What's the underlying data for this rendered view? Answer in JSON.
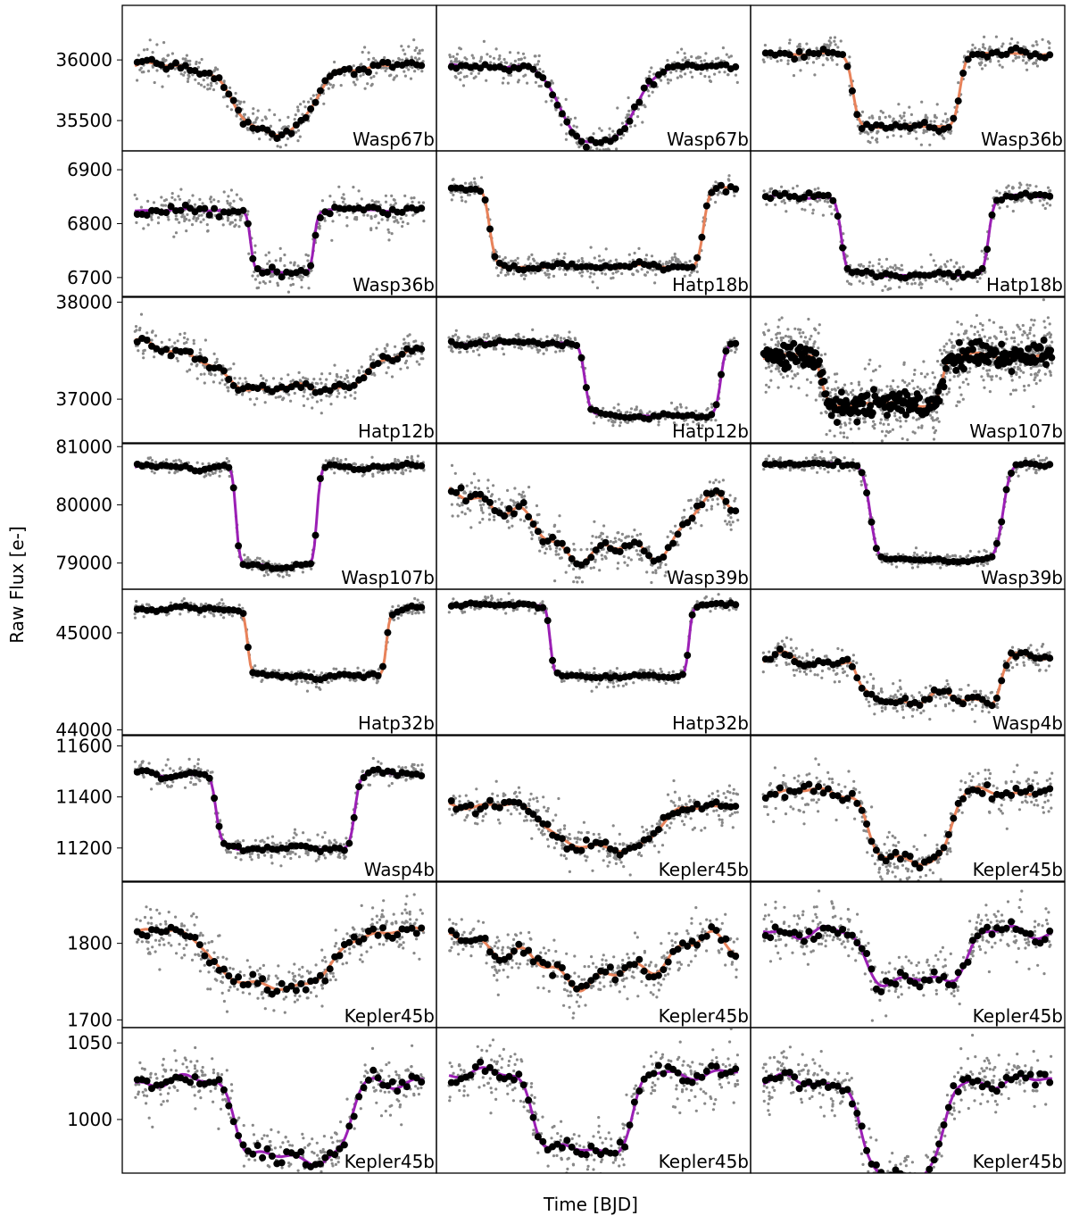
{
  "chart_data": {
    "type": "scatter",
    "xlabel": "Time [BJD]",
    "ylabel": "Raw Flux [e-]",
    "colors": {
      "raw": "#888888",
      "binned": "#000000",
      "orange": "#e8825a",
      "purple": "#9b1fb5"
    },
    "rows": [
      {
        "ylim": [
          35250,
          36450
        ],
        "ticks": [
          36000,
          35500
        ],
        "tick_labels": [
          "36000",
          "35500"
        ]
      },
      {
        "ylim": [
          6665,
          6935
        ],
        "ticks": [
          6900,
          6800,
          6700
        ],
        "tick_labels": [
          "6900",
          "6800",
          "6700"
        ]
      },
      {
        "ylim": [
          36550,
          38050
        ],
        "ticks": [
          38000,
          37000
        ],
        "tick_labels": [
          "38000",
          "37000"
        ]
      },
      {
        "ylim": [
          78550,
          81050
        ],
        "ticks": [
          81000,
          80000,
          79000
        ],
        "tick_labels": [
          "81000",
          "80000",
          "79000"
        ]
      },
      {
        "ylim": [
          43950,
          45450
        ],
        "ticks": [
          45000,
          44000
        ],
        "tick_labels": [
          "45000",
          "44000"
        ]
      },
      {
        "ylim": [
          11070,
          11640
        ],
        "ticks": [
          11600,
          11400,
          11200
        ],
        "tick_labels": [
          "11600",
          "11400",
          "11200"
        ]
      },
      {
        "ylim": [
          1690,
          1880
        ],
        "ticks": [
          1800,
          1700
        ],
        "tick_labels": [
          "1800",
          "1700"
        ]
      },
      {
        "ylim": [
          965,
          1060
        ],
        "ticks": [
          1050,
          1000
        ],
        "tick_labels": [
          "1050",
          "1000"
        ]
      }
    ],
    "panels": [
      {
        "label": "Wasp67b",
        "model": "orange",
        "base": 35950,
        "depth": 550,
        "ingress": 0.33,
        "egress": 0.63,
        "width": 0.13,
        "noise": 70,
        "wiggle": 35
      },
      {
        "label": "Wasp67b",
        "model": "purple",
        "base": 35950,
        "depth": 650,
        "ingress": 0.38,
        "egress": 0.65,
        "width": 0.13,
        "noise": 70,
        "wiggle": 15
      },
      {
        "label": "Wasp36b",
        "model": "orange",
        "base": 36050,
        "depth": 600,
        "ingress": 0.31,
        "egress": 0.68,
        "width": 0.04,
        "noise": 70,
        "wiggle": 10
      },
      {
        "label": "Wasp36b",
        "model": "purple",
        "base": 6825,
        "depth": 115,
        "ingress": 0.4,
        "egress": 0.62,
        "width": 0.025,
        "noise": 18,
        "wiggle": 3
      },
      {
        "label": "Hatp18b",
        "model": "orange",
        "base": 6865,
        "depth": 145,
        "ingress": 0.14,
        "egress": 0.88,
        "width": 0.04,
        "noise": 12,
        "wiggle": 4
      },
      {
        "label": "Hatp18b",
        "model": "purple",
        "base": 6850,
        "depth": 145,
        "ingress": 0.27,
        "egress": 0.78,
        "width": 0.035,
        "noise": 12,
        "wiggle": 4
      },
      {
        "label": "Hatp12b",
        "model": "orange",
        "base": 37580,
        "depth": 480,
        "ingress": 0.25,
        "egress": 0.85,
        "width": 0.22,
        "noise": 90,
        "wiggle": 60
      },
      {
        "label": "Hatp12b",
        "model": "purple",
        "base": 37580,
        "depth": 750,
        "ingress": 0.47,
        "egress": 0.94,
        "width": 0.035,
        "noise": 50,
        "wiggle": 15
      },
      {
        "label": "Wasp107b",
        "model": "orange",
        "base": 37450,
        "depth": 500,
        "ingress": 0.2,
        "egress": 0.62,
        "width": 0.04,
        "noise": 110,
        "wiggle": 30
      },
      {
        "label": "Wasp107b",
        "model": "purple",
        "base": 80650,
        "depth": 1700,
        "ingress": 0.35,
        "egress": 0.63,
        "width": 0.025,
        "noise": 70,
        "wiggle": 50
      },
      {
        "label": "Wasp39b",
        "model": "orange",
        "base": 80100,
        "depth": 900,
        "ingress": 0.28,
        "egress": 0.82,
        "width": 0.15,
        "noise": 180,
        "wiggle": 220
      },
      {
        "label": "Wasp39b",
        "model": "purple",
        "base": 80700,
        "depth": 1650,
        "ingress": 0.37,
        "egress": 0.83,
        "width": 0.05,
        "noise": 70,
        "wiggle": 25
      },
      {
        "label": "Hatp32b",
        "model": "orange",
        "base": 45250,
        "depth": 700,
        "ingress": 0.39,
        "egress": 0.87,
        "width": 0.025,
        "noise": 40,
        "wiggle": 30
      },
      {
        "label": "Hatp32b",
        "model": "purple",
        "base": 45290,
        "depth": 740,
        "ingress": 0.35,
        "egress": 0.83,
        "width": 0.025,
        "noise": 40,
        "wiggle": 10
      },
      {
        "label": "Wasp4b",
        "model": "orange",
        "base": 44720,
        "depth": 400,
        "ingress": 0.32,
        "egress": 0.82,
        "width": 0.04,
        "noise": 80,
        "wiggle": 90
      },
      {
        "label": "Wasp4b",
        "model": "purple",
        "base": 11490,
        "depth": 290,
        "ingress": 0.28,
        "egress": 0.76,
        "width": 0.035,
        "noise": 25,
        "wiggle": 12
      },
      {
        "label": "Kepler45b",
        "model": "orange",
        "base": 11370,
        "depth": 180,
        "ingress": 0.35,
        "egress": 0.73,
        "width": 0.17,
        "noise": 40,
        "wiggle": 18
      },
      {
        "label": "Kepler45b",
        "model": "orange",
        "base": 11420,
        "depth": 270,
        "ingress": 0.36,
        "egress": 0.65,
        "width": 0.07,
        "noise": 45,
        "wiggle": 20
      },
      {
        "label": "Kepler45b",
        "model": "orange",
        "base": 1815,
        "depth": 70,
        "ingress": 0.27,
        "egress": 0.7,
        "width": 0.12,
        "noise": 18,
        "wiggle": 6
      },
      {
        "label": "Kepler45b",
        "model": "orange",
        "base": 1800,
        "depth": 45,
        "ingress": 0.28,
        "egress": 0.72,
        "width": 0.15,
        "noise": 18,
        "wiggle": 18
      },
      {
        "label": "Kepler45b",
        "model": "purple",
        "base": 1815,
        "depth": 65,
        "ingress": 0.35,
        "egress": 0.7,
        "width": 0.09,
        "noise": 18,
        "wiggle": 10
      },
      {
        "label": "Kepler45b",
        "model": "purple",
        "base": 1025,
        "depth": 50,
        "ingress": 0.35,
        "egress": 0.75,
        "width": 0.07,
        "noise": 9,
        "wiggle": 5
      },
      {
        "label": "Kepler45b",
        "model": "purple",
        "base": 1030,
        "depth": 50,
        "ingress": 0.29,
        "egress": 0.64,
        "width": 0.07,
        "noise": 9,
        "wiggle": 4
      },
      {
        "label": "Kepler45b",
        "model": "purple",
        "base": 1025,
        "depth": 60,
        "ingress": 0.33,
        "egress": 0.63,
        "width": 0.07,
        "noise": 9,
        "wiggle": 5
      }
    ]
  }
}
